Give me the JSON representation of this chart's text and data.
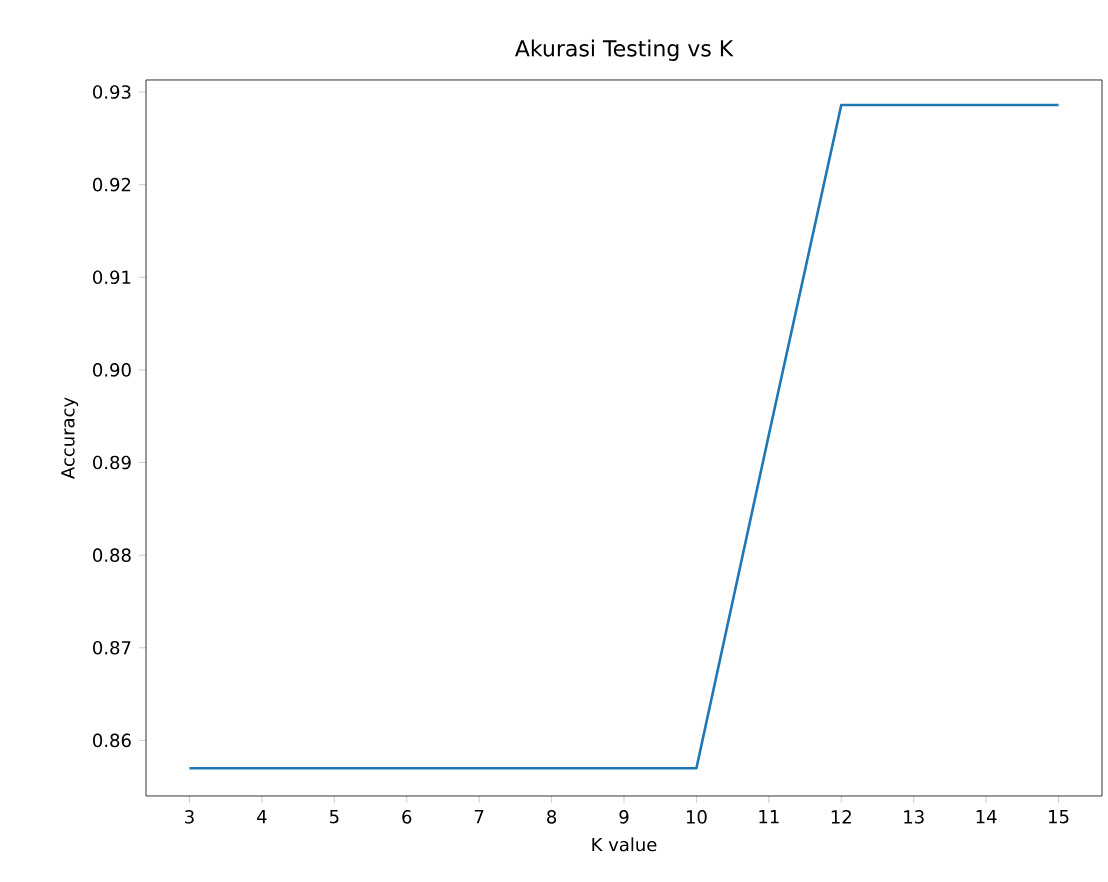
{
  "chart_data": {
    "type": "line",
    "title": "Akurasi Testing vs K",
    "xlabel": "K value",
    "ylabel": "Accuracy",
    "x": [
      3,
      4,
      5,
      6,
      7,
      8,
      9,
      10,
      11,
      12,
      13,
      14,
      15
    ],
    "series": [
      {
        "color": "#1f77b4",
        "values": [
          0.857,
          0.857,
          0.857,
          0.857,
          0.857,
          0.857,
          0.857,
          0.857,
          0.893,
          0.9286,
          0.9286,
          0.9286,
          0.9286
        ]
      }
    ],
    "xlim": [
      2.4,
      15.6
    ],
    "ylim": [
      0.854,
      0.9313
    ],
    "xticks": [
      3,
      4,
      5,
      6,
      7,
      8,
      9,
      10,
      11,
      12,
      13,
      14,
      15
    ],
    "yticks": [
      0.86,
      0.87,
      0.88,
      0.89,
      {
        "value": 0.9,
        "label": "0.90"
      },
      0.91,
      0.92,
      0.93
    ],
    "grid": false,
    "marker": "none",
    "line_style": "solid"
  }
}
